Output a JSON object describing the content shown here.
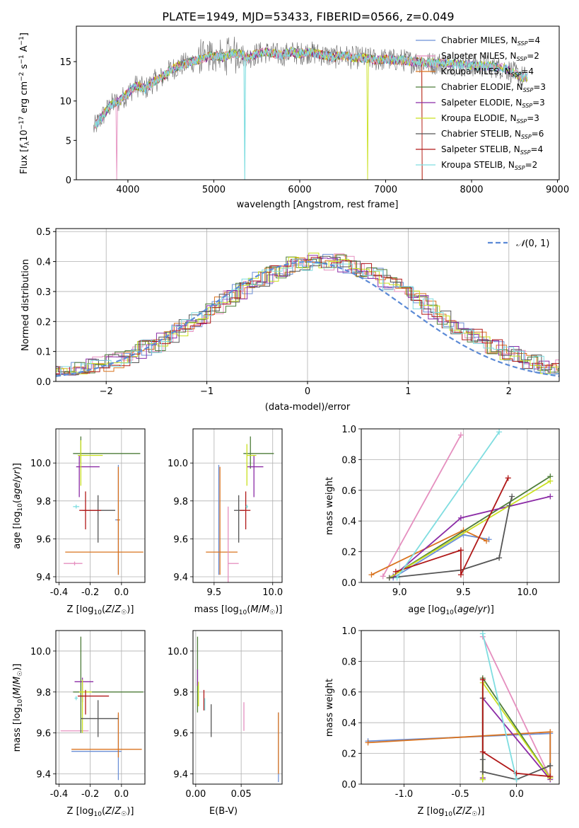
{
  "figure_title": "PLATE=1949, MJD=53433, FIBERID=0566, z=0.049",
  "colors": {
    "Chabrier MILES": "#6b8fd6",
    "Salpeter MILES": "#e58fbf",
    "Kroupa MILES": "#d9731f",
    "Chabrier ELODIE": "#4e7d3a",
    "Salpeter ELODIE": "#8b2ba6",
    "Kroupa ELODIE": "#c9e01f",
    "Chabrier STELIB": "#555555",
    "Salpeter STELIB": "#b01818",
    "Kroupa STELIB": "#7fdde0",
    "normal_curve": "#5b8ad6"
  },
  "chart_data": [
    {
      "type": "line",
      "panel": "spectrum",
      "title": "PLATE=1949, MJD=53433, FIBERID=0566, z=0.049",
      "xlabel": "wavelength [Angstrom, rest frame]",
      "ylabel": "Flux [f_λ 10^-17 erg cm^-2 s^-1 A^-1]",
      "xlim": [
        3400,
        9020
      ],
      "ylim": [
        0,
        19.5
      ],
      "xticks": [
        4000,
        5000,
        6000,
        7000,
        8000,
        9000
      ],
      "yticks": [
        0,
        5,
        10,
        15
      ],
      "legend": "top-right",
      "legend_entries": [
        {
          "model": "Chabrier MILES",
          "n_ssp": "4"
        },
        {
          "model": "Salpeter MILES",
          "n_ssp": "2"
        },
        {
          "model": "Kroupa MILES",
          "n_ssp": "4"
        },
        {
          "model": "Chabrier ELODIE",
          "n_ssp": "3"
        },
        {
          "model": "Salpeter ELODIE",
          "n_ssp": "3"
        },
        {
          "model": "Kroupa ELODIE",
          "n_ssp": "3"
        },
        {
          "model": "Chabrier STELIB",
          "n_ssp": "6"
        },
        {
          "model": "Salpeter STELIB",
          "n_ssp": "4"
        },
        {
          "model": "Kroupa STELIB",
          "n_ssp": "2"
        }
      ],
      "data_points": [
        [
          3600,
          6.5
        ],
        [
          3700,
          8
        ],
        [
          3800,
          9.5
        ],
        [
          3900,
          10
        ],
        [
          4000,
          11
        ],
        [
          4100,
          12
        ],
        [
          4200,
          11.5
        ],
        [
          4300,
          12.5
        ],
        [
          4400,
          13
        ],
        [
          4500,
          14
        ],
        [
          4600,
          14.5
        ],
        [
          4700,
          14.8
        ],
        [
          4800,
          15.2
        ],
        [
          4900,
          15.5
        ],
        [
          5000,
          15.8
        ],
        [
          5100,
          15.5
        ],
        [
          5200,
          16
        ],
        [
          5300,
          16
        ],
        [
          5400,
          15.5
        ],
        [
          5500,
          16
        ],
        [
          5600,
          16.2
        ],
        [
          5700,
          16
        ],
        [
          5800,
          15.8
        ],
        [
          5900,
          16.2
        ],
        [
          6000,
          16
        ],
        [
          6100,
          16.2
        ],
        [
          6200,
          16
        ],
        [
          6300,
          15.8
        ],
        [
          6400,
          15.5
        ],
        [
          6500,
          15.8
        ],
        [
          6600,
          15.5
        ],
        [
          6700,
          15.5
        ],
        [
          6800,
          15.4
        ],
        [
          6900,
          15.2
        ],
        [
          7000,
          15.3
        ],
        [
          7100,
          15.2
        ],
        [
          7200,
          15.2
        ],
        [
          7300,
          15
        ],
        [
          7400,
          15
        ],
        [
          7500,
          14.8
        ],
        [
          7600,
          14.8
        ],
        [
          7700,
          14.8
        ],
        [
          7800,
          14.7
        ],
        [
          7900,
          14.6
        ],
        [
          8000,
          14.5
        ],
        [
          8100,
          14.5
        ],
        [
          8200,
          14.4
        ],
        [
          8300,
          14.3
        ],
        [
          8400,
          14.1
        ],
        [
          8500,
          13.5
        ],
        [
          8600,
          13
        ]
      ],
      "notes_dropouts": [
        3870,
        5360,
        6790,
        7420
      ]
    },
    {
      "type": "line",
      "panel": "residual-histogram",
      "xlabel": "(data-model)/error",
      "ylabel": "Normed distribution",
      "xlim": [
        -2.5,
        2.5
      ],
      "ylim": [
        0,
        0.51
      ],
      "xticks": [
        -2,
        -1,
        0,
        1,
        2
      ],
      "yticks": [
        0.0,
        0.1,
        0.2,
        0.3,
        0.4,
        0.5
      ],
      "legend": "top-right",
      "legend_label": "N(0,1)",
      "grid": true
    },
    {
      "type": "scatter",
      "panel": "age-vs-Z",
      "xlabel": "Z [log10(Z/Z⊙)]",
      "ylabel": "age [log10(age/yr)]",
      "xlim": [
        -0.42,
        0.15
      ],
      "ylim": [
        9.37,
        10.18
      ],
      "xticks": [
        -0.4,
        -0.2,
        0.0
      ],
      "yticks": [
        9.4,
        9.6,
        9.8,
        10.0
      ],
      "grid": true,
      "points": [
        {
          "model": "Chabrier MILES",
          "x": -0.02,
          "y": 9.7,
          "xerr": [
            0.02,
            0.01
          ],
          "yerr": [
            0.29,
            0.29
          ]
        },
        {
          "model": "Kroupa MILES",
          "x": -0.02,
          "y": 9.7,
          "xerr": [
            0.01,
            0.01
          ],
          "yerr": [
            0.29,
            0.28
          ]
        },
        {
          "model": "Salpeter MILES",
          "x": -0.3,
          "y": 9.47,
          "xerr": [
            0.07,
            0.05
          ],
          "yerr": [
            0.01,
            0.01
          ]
        },
        {
          "model": "Chabrier ELODIE",
          "x": -0.26,
          "y": 10.05,
          "xerr": [
            0.05,
            0.38
          ],
          "yerr": [
            0.05,
            0.09
          ]
        },
        {
          "model": "Salpeter ELODIE",
          "x": -0.27,
          "y": 9.98,
          "xerr": [
            0.02,
            0.13
          ],
          "yerr": [
            0.16,
            0.06
          ]
        },
        {
          "model": "Kroupa ELODIE",
          "x": -0.26,
          "y": 10.04,
          "xerr": [
            0.02,
            0.14
          ],
          "yerr": [
            0.16,
            0.08
          ]
        },
        {
          "model": "Chabrier STELIB",
          "x": -0.15,
          "y": 9.75,
          "xerr": [
            0.1,
            0.11
          ],
          "yerr": [
            0.17,
            0.08
          ]
        },
        {
          "model": "Salpeter STELIB",
          "x": -0.23,
          "y": 9.75,
          "xerr": [
            0.04,
            0.1
          ],
          "yerr": [
            0.1,
            0.1
          ]
        },
        {
          "model": "Kroupa STELIB",
          "x": -0.29,
          "y": 9.77,
          "xerr": [
            0.02,
            0.02
          ],
          "yerr": [
            0.01,
            0.01
          ]
        },
        {
          "model": "Kroupa MILES (wide)",
          "x": -0.1,
          "y": 9.53,
          "xerr": [
            0.26,
            0.24
          ],
          "yerr": [
            0.0,
            0.0
          ]
        }
      ]
    },
    {
      "type": "scatter",
      "panel": "age-vs-mass",
      "xlabel": "mass [log10(M/M⊙)]",
      "ylabel": "",
      "xlim": [
        9.32,
        10.08
      ],
      "ylim": [
        9.37,
        10.18
      ],
      "xticks": [
        9.5,
        10.0
      ],
      "yticks": [
        9.4,
        9.6,
        9.8,
        10.0
      ],
      "grid": true,
      "points": [
        {
          "model": "Chabrier MILES",
          "x": 9.54,
          "y": 9.7,
          "yerr": [
            0.29,
            0.29
          ]
        },
        {
          "model": "Kroupa MILES",
          "x": 9.55,
          "y": 9.53,
          "xerr": [
            0.12,
            0.15
          ],
          "yerr": [
            0.12,
            0.45
          ]
        },
        {
          "model": "Salpeter MILES",
          "x": 9.62,
          "y": 9.47,
          "xerr": [
            0.0,
            0.09
          ],
          "yerr": [
            0.1,
            0.3
          ]
        },
        {
          "model": "Chabrier ELODIE",
          "x": 9.81,
          "y": 10.05,
          "xerr": [
            0.06,
            0.2
          ],
          "yerr": [
            0.08,
            0.09
          ]
        },
        {
          "model": "Salpeter ELODIE",
          "x": 9.84,
          "y": 9.98,
          "xerr": [
            0.06,
            0.08
          ],
          "yerr": [
            0.16,
            0.06
          ]
        },
        {
          "model": "Kroupa ELODIE",
          "x": 9.78,
          "y": 10.04,
          "xerr": [
            0.0,
            0.08
          ],
          "yerr": [
            0.16,
            0.06
          ]
        },
        {
          "model": "Chabrier STELIB",
          "x": 9.71,
          "y": 9.75,
          "xerr": [
            0.04,
            0.05
          ],
          "yerr": [
            0.17,
            0.08
          ]
        },
        {
          "model": "Salpeter STELIB",
          "x": 9.77,
          "y": 9.75,
          "xerr": [
            0.05,
            0.04
          ],
          "yerr": [
            0.1,
            0.1
          ]
        },
        {
          "model": "Kroupa STELIB",
          "x": 9.78,
          "y": 9.77,
          "xerr": [
            0.01,
            0.01
          ],
          "yerr": [
            0.01,
            0.01
          ]
        }
      ]
    },
    {
      "type": "line",
      "panel": "mass-weight-vs-age",
      "xlabel": "age [log10(age/yr)]",
      "ylabel": "mass weight",
      "xlim": [
        8.7,
        10.25
      ],
      "ylim": [
        0,
        1.0
      ],
      "xticks": [
        9.0,
        9.5,
        10.0
      ],
      "yticks": [
        0.0,
        0.2,
        0.4,
        0.6,
        0.8,
        1.0
      ],
      "grid": true,
      "series": [
        {
          "model": "Chabrier MILES",
          "x": [
            8.95,
            9.5,
            9.7
          ],
          "y": [
            0.03,
            0.31,
            0.28
          ]
        },
        {
          "model": "Salpeter MILES",
          "x": [
            8.87,
            9.48
          ],
          "y": [
            0.04,
            0.96
          ]
        },
        {
          "model": "Kroupa MILES",
          "x": [
            8.78,
            9.5,
            9.68
          ],
          "y": [
            0.05,
            0.34,
            0.27
          ]
        },
        {
          "model": "Chabrier ELODIE",
          "x": [
            8.92,
            10.18
          ],
          "y": [
            0.03,
            0.69
          ]
        },
        {
          "model": "Salpeter ELODIE",
          "x": [
            8.95,
            9.48,
            10.18
          ],
          "y": [
            0.04,
            0.42,
            0.56
          ]
        },
        {
          "model": "Kroupa ELODIE",
          "x": [
            8.92,
            10.18
          ],
          "y": [
            0.03,
            0.66
          ]
        },
        {
          "model": "Chabrier STELIB",
          "x": [
            8.92,
            9.48,
            9.78,
            9.86,
            9.88
          ],
          "y": [
            0.03,
            0.08,
            0.16,
            0.5,
            0.56
          ]
        },
        {
          "model": "Salpeter STELIB",
          "x": [
            8.97,
            9.48,
            9.48,
            9.85
          ],
          "y": [
            0.07,
            0.21,
            0.05,
            0.68
          ]
        },
        {
          "model": "Kroupa STELIB",
          "x": [
            8.98,
            9.78
          ],
          "y": [
            0.03,
            0.98
          ]
        }
      ]
    },
    {
      "type": "scatter",
      "panel": "mass-vs-Z",
      "xlabel": "Z [log10(Z/Z⊙)]",
      "ylabel": "mass [log10(M/M⊙)]",
      "xlim": [
        -0.42,
        0.15
      ],
      "ylim": [
        9.35,
        10.1
      ],
      "xticks": [
        -0.4,
        -0.2,
        0.0
      ],
      "yticks": [
        9.4,
        9.6,
        9.8,
        10.0
      ],
      "grid": true,
      "points": [
        {
          "model": "Chabrier MILES",
          "x": -0.02,
          "y": 9.51,
          "xerr": [
            0.3,
            0.02
          ],
          "yerr": [
            0.14,
            0.18
          ]
        },
        {
          "model": "Kroupa MILES",
          "x": -0.02,
          "y": 9.52,
          "xerr": [
            0.3,
            0.15
          ],
          "yerr": [
            0.04,
            0.18
          ]
        },
        {
          "model": "Salpeter MILES",
          "x": -0.3,
          "y": 9.61,
          "xerr": [
            0.09,
            0.09
          ],
          "yerr": [
            0.0,
            0.0
          ]
        },
        {
          "model": "Chabrier ELODIE",
          "x": -0.26,
          "y": 9.8,
          "xerr": [
            0.05,
            0.4
          ],
          "yerr": [
            0.2,
            0.27
          ]
        },
        {
          "model": "Salpeter ELODIE",
          "x": -0.25,
          "y": 9.85,
          "xerr": [
            0.05,
            0.07
          ],
          "yerr": [
            0.1,
            0.02
          ]
        },
        {
          "model": "Kroupa ELODIE",
          "x": -0.25,
          "y": 9.8,
          "xerr": [
            0.02,
            0.06
          ],
          "yerr": [
            0.2,
            0.06
          ]
        },
        {
          "model": "Chabrier STELIB",
          "x": -0.15,
          "y": 9.67,
          "xerr": [
            0.11,
            0.13
          ],
          "yerr": [
            0.09,
            0.09
          ]
        },
        {
          "model": "Salpeter STELIB",
          "x": -0.23,
          "y": 9.78,
          "xerr": [
            0.05,
            0.15
          ],
          "yerr": [
            0.09,
            0.03
          ]
        },
        {
          "model": "Kroupa STELIB",
          "x": -0.29,
          "y": 9.77,
          "xerr": [
            0.01,
            0.01
          ],
          "yerr": [
            0.01,
            0.01
          ]
        }
      ]
    },
    {
      "type": "scatter",
      "panel": "mass-vs-EBV",
      "xlabel": "E(B-V)",
      "ylabel": "",
      "xlim": [
        -0.003,
        0.095
      ],
      "ylim": [
        9.35,
        10.1
      ],
      "xticks": [
        0.0,
        0.05
      ],
      "yticks": [
        9.4,
        9.6,
        9.8,
        10.0
      ],
      "grid": true,
      "points": [
        {
          "model": "Chabrier MILES",
          "x": 0.091,
          "y": 9.52,
          "yerr": [
            0.16,
            0.18
          ]
        },
        {
          "model": "Kroupa MILES",
          "x": 0.091,
          "y": 9.54,
          "yerr": [
            0.14,
            0.16
          ]
        },
        {
          "model": "Salpeter MILES",
          "x": 0.053,
          "y": 9.68,
          "yerr": [
            0.07,
            0.07
          ]
        },
        {
          "model": "Chabrier ELODIE",
          "x": 0.002,
          "y": 9.9,
          "yerr": [
            0.2,
            0.17
          ]
        },
        {
          "model": "Salpeter ELODIE",
          "x": 0.002,
          "y": 9.87,
          "yerr": [
            0.04,
            0.04
          ]
        },
        {
          "model": "Kroupa ELODIE",
          "x": 0.003,
          "y": 9.79,
          "yerr": [
            0.06,
            0.06
          ]
        },
        {
          "model": "Chabrier STELIB",
          "x": 0.017,
          "y": 9.66,
          "yerr": [
            0.08,
            0.08
          ]
        },
        {
          "model": "Salpeter STELIB",
          "x": 0.009,
          "y": 9.76,
          "yerr": [
            0.05,
            0.05
          ]
        },
        {
          "model": "Kroupa STELIB",
          "x": 0.01,
          "y": 9.74,
          "yerr": [
            0.03,
            0.03
          ]
        }
      ]
    },
    {
      "type": "line",
      "panel": "mass-weight-vs-Z",
      "xlabel": "Z [log10(Z/Z⊙)]",
      "ylabel": "mass weight",
      "xlim": [
        -1.38,
        0.38
      ],
      "ylim": [
        0,
        1.0
      ],
      "xticks": [
        -1.0,
        -0.5,
        0.0
      ],
      "yticks": [
        0.0,
        0.2,
        0.4,
        0.6,
        0.8,
        1.0
      ],
      "grid": true,
      "series": [
        {
          "model": "Chabrier MILES",
          "x": [
            -1.32,
            0.3,
            0.3
          ],
          "y": [
            0.28,
            0.33,
            0.04
          ]
        },
        {
          "model": "Salpeter MILES",
          "x": [
            -0.3,
            0.3
          ],
          "y": [
            0.96,
            0.04
          ]
        },
        {
          "model": "Kroupa MILES",
          "x": [
            -1.32,
            0.3,
            0.3
          ],
          "y": [
            0.27,
            0.34,
            0.05
          ]
        },
        {
          "model": "Chabrier ELODIE",
          "x": [
            -0.3,
            -0.3,
            0.3
          ],
          "y": [
            0.03,
            0.69,
            0.04
          ]
        },
        {
          "model": "Salpeter ELODIE",
          "x": [
            -0.3,
            -0.3,
            0.3
          ],
          "y": [
            0.04,
            0.56,
            0.03
          ]
        },
        {
          "model": "Kroupa ELODIE",
          "x": [
            -0.3,
            -0.3,
            0.3
          ],
          "y": [
            0.03,
            0.66,
            0.04
          ]
        },
        {
          "model": "Chabrier STELIB",
          "x": [
            -0.3,
            -0.3,
            -0.3,
            0.0,
            0.3
          ],
          "y": [
            0.56,
            0.16,
            0.08,
            0.03,
            0.12
          ]
        },
        {
          "model": "Salpeter STELIB",
          "x": [
            -0.3,
            -0.3,
            0.0,
            0.3
          ],
          "y": [
            0.68,
            0.21,
            0.07,
            0.05
          ]
        },
        {
          "model": "Kroupa STELIB",
          "x": [
            -0.3,
            0.0
          ],
          "y": [
            0.98,
            0.03
          ]
        }
      ]
    }
  ]
}
